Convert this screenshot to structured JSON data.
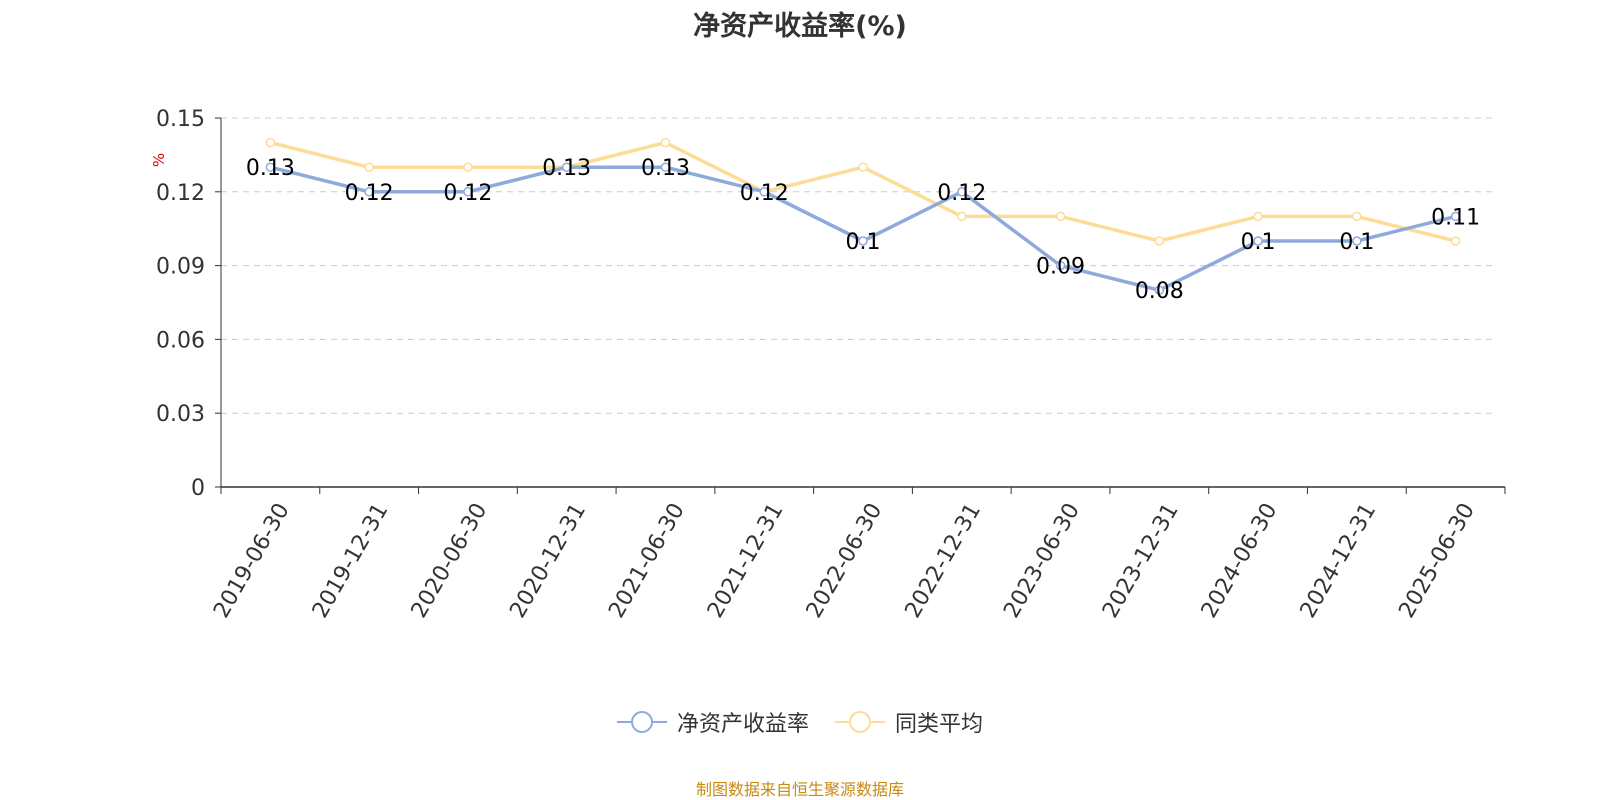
{
  "chart_data": {
    "type": "line",
    "title": "净资产收益率(%)",
    "ylabel": "%",
    "categories": [
      "2019-06-30",
      "2019-12-31",
      "2020-06-30",
      "2020-12-31",
      "2021-06-30",
      "2021-12-31",
      "2022-06-30",
      "2022-12-31",
      "2023-06-30",
      "2023-12-31",
      "2024-06-30",
      "2024-12-31",
      "2025-06-30"
    ],
    "yticks": [
      "0",
      "0.03",
      "0.06",
      "0.09",
      "0.12",
      "0.15"
    ],
    "ylim": [
      0,
      0.15
    ],
    "grid": true,
    "legend_position": "bottom",
    "series": [
      {
        "name": "净资产收益率",
        "color": "#8eaadb",
        "show_labels": true,
        "values": [
          0.13,
          0.12,
          0.12,
          0.13,
          0.13,
          0.12,
          0.1,
          0.12,
          0.09,
          0.08,
          0.1,
          0.1,
          0.11
        ],
        "labels": [
          "0.13",
          "0.12",
          "0.12",
          "0.13",
          "0.13",
          "0.12",
          "0.1",
          "0.12",
          "0.09",
          "0.08",
          "0.1",
          "0.1",
          "0.11"
        ]
      },
      {
        "name": "同类平均",
        "color": "#fddc97",
        "show_labels": false,
        "values": [
          0.14,
          0.13,
          0.13,
          0.13,
          0.14,
          0.12,
          0.13,
          0.11,
          0.11,
          0.1,
          0.11,
          0.11,
          0.1
        ]
      }
    ]
  },
  "footer": {
    "source": "制图数据来自恒生聚源数据库"
  },
  "colors": {
    "axis": "#333333",
    "grid": "#cccccc",
    "ylabel": "#e00000",
    "source": "#c78a12"
  }
}
